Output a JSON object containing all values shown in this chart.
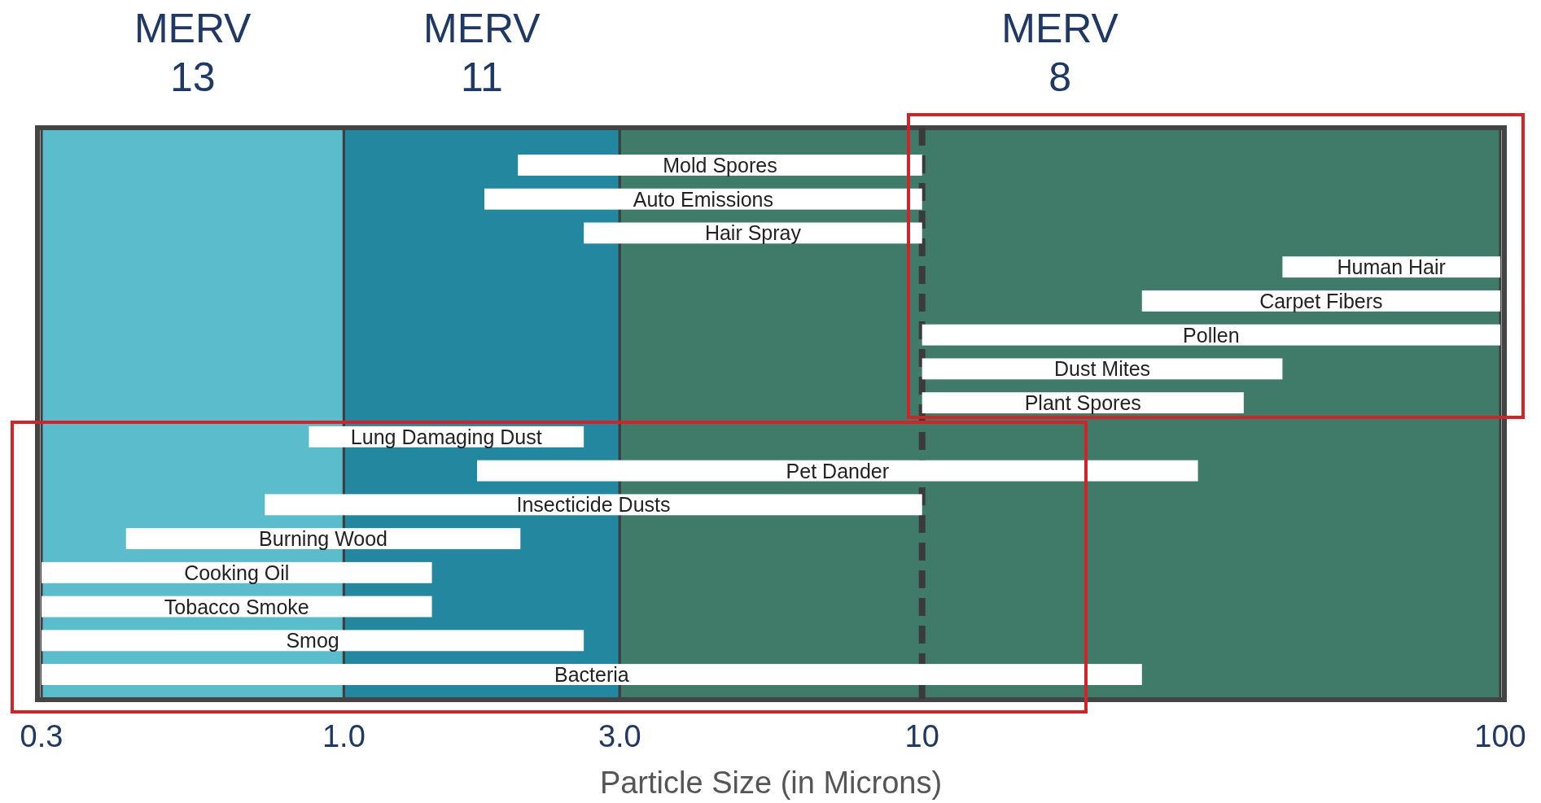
{
  "chart_data": {
    "type": "bar",
    "orientation": "horizontal",
    "xlabel": "Particle Size (in Microns)",
    "categories": [
      "Mold Spores",
      "Auto Emissions",
      "Hair Spray",
      "Human Hair",
      "Carpet Fibers",
      "Pollen",
      "Dust Mites",
      "Plant Spores",
      "Lung Damaging Dust",
      "Pet Dander",
      "Insecticide Dusts",
      "Burning Wood",
      "Cooking Oil",
      "Tobacco Smoke",
      "Smog",
      "Bacteria"
    ],
    "base": [
      2,
      1.75,
      2.6,
      42,
      24,
      10,
      10,
      10,
      0.87,
      1.7,
      0.73,
      0.42,
      0.3,
      0.3,
      0.3,
      0.3
    ],
    "values": [
      8,
      8.25,
      7.4,
      58,
      76,
      90,
      32,
      26,
      1.73,
      28.3,
      9.27,
      1.6,
      1.12,
      1.12,
      2.3,
      23.7
    ],
    "color": "#ffffff",
    "xlim": [
      0.3,
      100
    ],
    "xticks": [
      0.3,
      {
        "value": 1,
        "label": "1.0"
      },
      {
        "value": 3,
        "label": "3.0"
      },
      10,
      100
    ],
    "bands": [
      {
        "axis": "x",
        "from": 0.3,
        "to": 1,
        "label": "MERV\n13",
        "color": "#5bbccb"
      },
      {
        "axis": "x",
        "from": 1,
        "to": 3,
        "label": "MERV\n11",
        "color": "#23879f"
      },
      {
        "axis": "x",
        "from": 3,
        "to": 100,
        "label": "MERV\n8",
        "color": "#3f7b68"
      }
    ],
    "ref_lines": [
      {
        "axis": "x",
        "value": 10,
        "color": "#3a3a3a",
        "line_style": "dashed"
      }
    ],
    "log": "x",
    "grid": false
  }
}
